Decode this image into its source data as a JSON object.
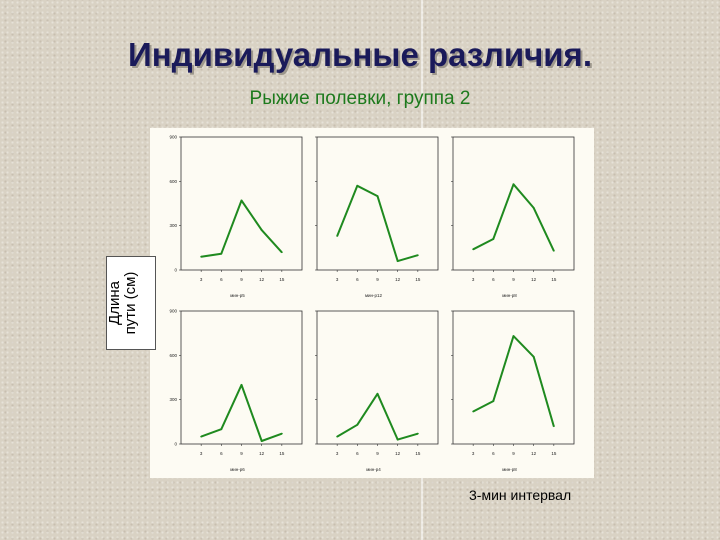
{
  "slide": {
    "title": "Индивидуальные различия.",
    "subtitle": "Рыжие полевки, группа 2",
    "y_axis_label": "Длина\nпути (см)",
    "x_caption": "3-мин интервал"
  },
  "colors": {
    "line": "#1f8a1f",
    "title": "#1a1a5a",
    "subtitle": "#1d7a1d",
    "panel_bg": "#fdfbf3"
  },
  "chart_data": [
    {
      "type": "line",
      "x": [
        3,
        6,
        9,
        12,
        15
      ],
      "y": [
        90,
        110,
        470,
        270,
        120
      ],
      "xlabel": "мин-р5",
      "yticks": [
        0,
        300,
        600,
        900
      ],
      "ylim": [
        0,
        900
      ]
    },
    {
      "type": "line",
      "x": [
        3,
        6,
        9,
        12,
        15
      ],
      "y": [
        230,
        570,
        500,
        60,
        100
      ],
      "xlabel": "мин-р12",
      "yticks": [],
      "ylim": [
        0,
        900
      ]
    },
    {
      "type": "line",
      "x": [
        3,
        6,
        9,
        12,
        15
      ],
      "y": [
        140,
        210,
        580,
        420,
        130
      ],
      "xlabel": "мин-р8",
      "yticks": [],
      "ylim": [
        0,
        900
      ]
    },
    {
      "type": "line",
      "x": [
        3,
        6,
        9,
        12,
        15
      ],
      "y": [
        50,
        100,
        400,
        20,
        70
      ],
      "xlabel": "мин-р6",
      "yticks": [
        0,
        300,
        600,
        900
      ],
      "ylim": [
        0,
        900
      ]
    },
    {
      "type": "line",
      "x": [
        3,
        6,
        9,
        12,
        15
      ],
      "y": [
        50,
        130,
        340,
        30,
        70
      ],
      "xlabel": "мин-р4",
      "yticks": [],
      "ylim": [
        0,
        900
      ]
    },
    {
      "type": "line",
      "x": [
        3,
        6,
        9,
        12,
        15
      ],
      "y": [
        220,
        290,
        730,
        590,
        120
      ],
      "xlabel": "мин-р8",
      "yticks": [],
      "ylim": [
        0,
        900
      ]
    }
  ]
}
